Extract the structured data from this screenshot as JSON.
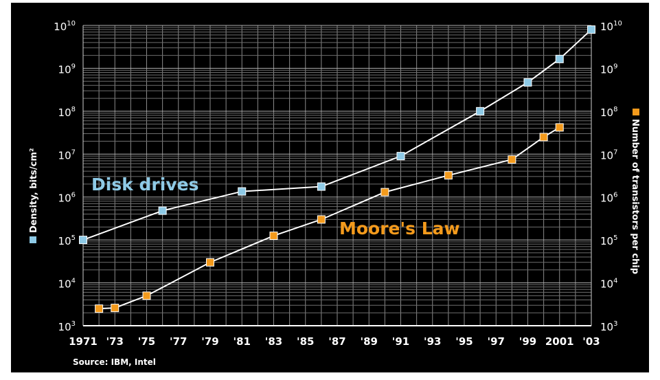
{
  "chart_data": {
    "type": "line",
    "title": "",
    "ylabel_left": "Density, bits/cm²",
    "ylabel_right": "Number of transistors per chip",
    "source": "Source: IBM, Intel",
    "y_scale": "log",
    "ylim": [
      1000,
      10000000000
    ],
    "xlim": [
      1971,
      2003
    ],
    "x_ticks": [
      {
        "value": 1971,
        "label": "1971"
      },
      {
        "value": 1973,
        "label": "'73"
      },
      {
        "value": 1975,
        "label": "'75"
      },
      {
        "value": 1977,
        "label": "'77"
      },
      {
        "value": 1979,
        "label": "'79"
      },
      {
        "value": 1981,
        "label": "'81"
      },
      {
        "value": 1983,
        "label": "'83"
      },
      {
        "value": 1985,
        "label": "'85"
      },
      {
        "value": 1987,
        "label": "'87"
      },
      {
        "value": 1989,
        "label": "'89"
      },
      {
        "value": 1991,
        "label": "'91"
      },
      {
        "value": 1993,
        "label": "'93"
      },
      {
        "value": 1995,
        "label": "'95"
      },
      {
        "value": 1997,
        "label": "'97"
      },
      {
        "value": 1999,
        "label": "'99"
      },
      {
        "value": 2001,
        "label": "2001"
      },
      {
        "value": 2003,
        "label": "'03"
      }
    ],
    "y_ticks": [
      {
        "exp": 3,
        "base": "10",
        "sup": "3"
      },
      {
        "exp": 4,
        "base": "10",
        "sup": "4"
      },
      {
        "exp": 5,
        "base": "10",
        "sup": "5"
      },
      {
        "exp": 6,
        "base": "10",
        "sup": "6"
      },
      {
        "exp": 7,
        "base": "10",
        "sup": "7"
      },
      {
        "exp": 8,
        "base": "10",
        "sup": "8"
      },
      {
        "exp": 9,
        "base": "10",
        "sup": "9"
      },
      {
        "exp": 10,
        "base": "10",
        "sup": "10"
      }
    ],
    "grid": true,
    "series": [
      {
        "name": "Disk drives",
        "color": "#8ecae6",
        "x": [
          1971,
          1976,
          1981,
          1986,
          1991,
          1996,
          1999,
          2001,
          2003
        ],
        "y": [
          100000,
          480000,
          1350000,
          1750000,
          9000000,
          100000000,
          470000000,
          1650000000,
          8000000000
        ]
      },
      {
        "name": "Moore's Law",
        "color": "#f39a1c",
        "x": [
          1972,
          1973,
          1975,
          1979,
          1983,
          1986,
          1990,
          1994,
          1998,
          2000,
          2001
        ],
        "y": [
          2500,
          2600,
          5000,
          30000,
          125000,
          300000,
          1300000,
          3200000,
          7500000,
          25000000,
          42000000
        ]
      }
    ]
  }
}
